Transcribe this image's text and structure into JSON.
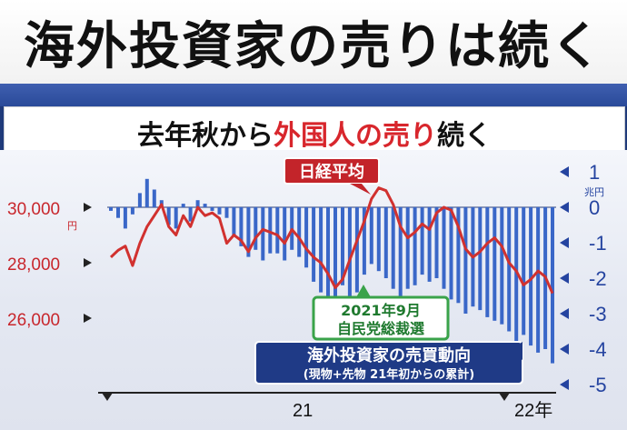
{
  "headline": "海外投資家の売りは続く",
  "subtitle": {
    "part1": "去年秋から",
    "part2": "外国人の売り",
    "part3": "続く"
  },
  "colors": {
    "nikkei_line": "#d1312f",
    "flow_bar": "#3a67c8",
    "accent_red": "#d8262c",
    "navy": "#1f3a7a",
    "green": "#3aa34a"
  },
  "chart_data": {
    "type": "bar+line",
    "x_labels": [
      "21",
      "22年"
    ],
    "left_axis": {
      "ticks": [
        "30,000",
        "28,000",
        "26,000"
      ],
      "unit": "円",
      "ylim": [
        25200,
        30800
      ]
    },
    "right_axis": {
      "ticks": [
        "1",
        "0",
        "-1",
        "-2",
        "-3",
        "-4",
        "-5"
      ],
      "unit": "兆円",
      "ylim": [
        -5.2,
        1.2
      ]
    },
    "series": [
      {
        "name": "日経平均",
        "axis": "left",
        "values": [
          28200,
          28450,
          28600,
          27900,
          28700,
          29300,
          29700,
          30100,
          29300,
          29000,
          29700,
          29300,
          30000,
          29700,
          29800,
          29600,
          28700,
          29000,
          28800,
          28400,
          28900,
          29200,
          29100,
          29000,
          28700,
          29200,
          28900,
          28500,
          28200,
          28000,
          27600,
          27100,
          27400,
          28100,
          28800,
          29500,
          30300,
          30700,
          30600,
          30100,
          29300,
          28900,
          29100,
          29400,
          29200,
          29800,
          30000,
          29900,
          29300,
          28500,
          28200,
          28400,
          28700,
          28900,
          28600,
          28000,
          27700,
          27200,
          27400,
          27700,
          27500,
          26900
        ]
      },
      {
        "name": "海外投資家の売買動向",
        "axis": "right",
        "note": "(現物+先物 21年初からの累計)",
        "values": [
          -0.1,
          -0.3,
          -0.6,
          -0.2,
          0.4,
          0.8,
          0.5,
          0.2,
          -0.5,
          -0.6,
          0.1,
          -0.4,
          0.2,
          0.1,
          -0.1,
          -0.2,
          -0.3,
          -0.8,
          -1.1,
          -1.4,
          -1.2,
          -1.5,
          -1.3,
          -1.3,
          -1.5,
          -1.2,
          -1.4,
          -1.7,
          -2.1,
          -2.4,
          -2.7,
          -2.5,
          -2.2,
          -2.6,
          -2.4,
          -1.9,
          -1.6,
          -1.8,
          -2.0,
          -2.3,
          -2.6,
          -2.3,
          -2.2,
          -1.9,
          -2.1,
          -2.0,
          -2.3,
          -2.6,
          -2.7,
          -3.0,
          -2.8,
          -2.9,
          -3.1,
          -3.2,
          -3.3,
          -3.5,
          -3.8,
          -3.6,
          -3.9,
          -4.1,
          -4.0,
          -4.4
        ]
      }
    ],
    "annotations": [
      {
        "text": "日経平均",
        "target": "日経平均"
      },
      {
        "text": "2021年9月\n自民党総裁選",
        "lines": [
          "2021年9月",
          "自民党総裁選"
        ]
      },
      {
        "text": "海外投資家の売買動向",
        "sub": "(現物+先物 21年初からの累計)"
      }
    ]
  }
}
